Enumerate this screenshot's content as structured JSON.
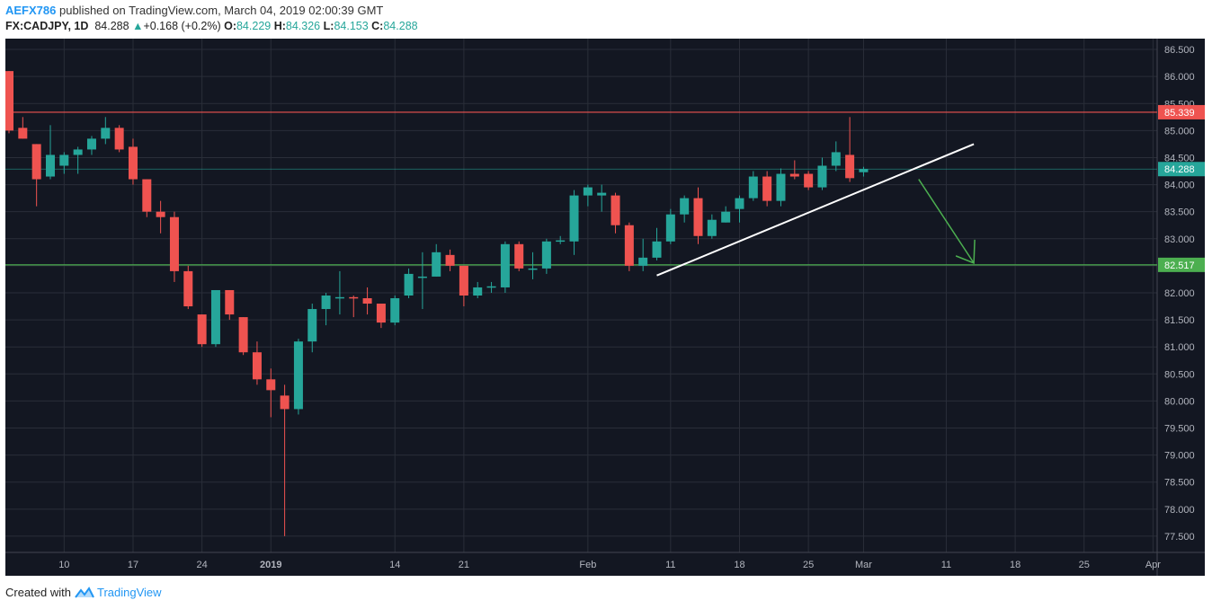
{
  "header": {
    "publisher": "AEFX786",
    "published_text": " published on TradingView.com, March 04, 2019 02:00:39 GMT",
    "symbol": "FX:CADJPY, 1D",
    "last": "84.288",
    "up_arrow": "▲",
    "change": "+0.168 (+0.2%)",
    "o_label": "O:",
    "o_val": "84.229",
    "h_label": "H:",
    "h_val": "84.326",
    "l_label": "L:",
    "l_val": "84.153",
    "c_label": "C:",
    "c_val": "84.288"
  },
  "footer": {
    "created_with": "Created with",
    "brand": "TradingView"
  },
  "colors": {
    "background": "#131722",
    "grid": "#2a2e39",
    "up": "#26a69a",
    "down": "#ef5350",
    "axis_text": "#b2b5be",
    "support_line": "#4caf50",
    "resistance_line": "#ef5350",
    "trendline": "#ffffff",
    "arrow": "#4caf50"
  },
  "chart_data": {
    "type": "candlestick",
    "symbol": "FX:CADJPY",
    "timeframe": "1D",
    "ylim": [
      77.2,
      86.7
    ],
    "y_ticks": [
      "86.500",
      "86.000",
      "85.500",
      "85.000",
      "84.500",
      "84.000",
      "83.500",
      "83.000",
      "82.500",
      "82.000",
      "81.500",
      "81.000",
      "80.500",
      "80.000",
      "79.500",
      "79.000",
      "78.500",
      "78.000",
      "77.500"
    ],
    "x_ticks": [
      {
        "label": "10",
        "i": 4
      },
      {
        "label": "17",
        "i": 9
      },
      {
        "label": "24",
        "i": 14
      },
      {
        "label": "2019",
        "i": 19,
        "bold": true
      },
      {
        "label": "14",
        "i": 28
      },
      {
        "label": "21",
        "i": 33
      },
      {
        "label": "Feb",
        "i": 42
      },
      {
        "label": "11",
        "i": 48
      },
      {
        "label": "18",
        "i": 53
      },
      {
        "label": "25",
        "i": 58
      },
      {
        "label": "Mar",
        "i": 62
      },
      {
        "label": "11",
        "i": 68
      },
      {
        "label": "18",
        "i": 73
      },
      {
        "label": "25",
        "i": 78
      },
      {
        "label": "Apr",
        "i": 83
      }
    ],
    "candles": [
      {
        "o": 86.1,
        "h": 86.1,
        "l": 84.95,
        "c": 85.0
      },
      {
        "o": 85.05,
        "h": 85.25,
        "l": 84.85,
        "c": 84.85
      },
      {
        "o": 84.75,
        "h": 84.75,
        "l": 83.6,
        "c": 84.1
      },
      {
        "o": 84.15,
        "h": 85.1,
        "l": 84.1,
        "c": 84.55
      },
      {
        "o": 84.35,
        "h": 84.6,
        "l": 84.2,
        "c": 84.55
      },
      {
        "o": 84.55,
        "h": 84.7,
        "l": 84.2,
        "c": 84.65
      },
      {
        "o": 84.65,
        "h": 84.9,
        "l": 84.55,
        "c": 84.85
      },
      {
        "o": 84.85,
        "h": 85.25,
        "l": 84.75,
        "c": 85.05
      },
      {
        "o": 85.05,
        "h": 85.1,
        "l": 84.6,
        "c": 84.65
      },
      {
        "o": 84.7,
        "h": 84.85,
        "l": 84.0,
        "c": 84.1
      },
      {
        "o": 84.1,
        "h": 84.1,
        "l": 83.4,
        "c": 83.5
      },
      {
        "o": 83.5,
        "h": 83.7,
        "l": 83.1,
        "c": 83.4
      },
      {
        "o": 83.4,
        "h": 83.5,
        "l": 82.2,
        "c": 82.4
      },
      {
        "o": 82.4,
        "h": 82.5,
        "l": 81.7,
        "c": 81.75
      },
      {
        "o": 81.6,
        "h": 81.6,
        "l": 81.0,
        "c": 81.05
      },
      {
        "o": 81.05,
        "h": 82.05,
        "l": 81.0,
        "c": 82.05
      },
      {
        "o": 82.05,
        "h": 82.05,
        "l": 81.5,
        "c": 81.6
      },
      {
        "o": 81.55,
        "h": 81.55,
        "l": 80.85,
        "c": 80.9
      },
      {
        "o": 80.9,
        "h": 81.1,
        "l": 80.3,
        "c": 80.4
      },
      {
        "o": 80.4,
        "h": 80.6,
        "l": 79.7,
        "c": 80.2
      },
      {
        "o": 80.1,
        "h": 80.3,
        "l": 77.5,
        "c": 79.85
      },
      {
        "o": 79.85,
        "h": 81.15,
        "l": 79.75,
        "c": 81.1
      },
      {
        "o": 81.1,
        "h": 81.8,
        "l": 80.9,
        "c": 81.7
      },
      {
        "o": 81.7,
        "h": 82.0,
        "l": 81.4,
        "c": 81.95
      },
      {
        "o": 81.9,
        "h": 82.4,
        "l": 81.6,
        "c": 81.92
      },
      {
        "o": 81.92,
        "h": 81.95,
        "l": 81.55,
        "c": 81.9
      },
      {
        "o": 81.9,
        "h": 82.1,
        "l": 81.6,
        "c": 81.8
      },
      {
        "o": 81.8,
        "h": 81.8,
        "l": 81.35,
        "c": 81.45
      },
      {
        "o": 81.45,
        "h": 81.95,
        "l": 81.4,
        "c": 81.9
      },
      {
        "o": 81.95,
        "h": 82.45,
        "l": 81.9,
        "c": 82.35
      },
      {
        "o": 82.3,
        "h": 82.75,
        "l": 81.7,
        "c": 82.3
      },
      {
        "o": 82.3,
        "h": 82.9,
        "l": 82.3,
        "c": 82.75
      },
      {
        "o": 82.7,
        "h": 82.8,
        "l": 82.4,
        "c": 82.5
      },
      {
        "o": 82.5,
        "h": 82.5,
        "l": 81.75,
        "c": 81.95
      },
      {
        "o": 81.95,
        "h": 82.2,
        "l": 81.9,
        "c": 82.1
      },
      {
        "o": 82.1,
        "h": 82.2,
        "l": 82.0,
        "c": 82.12
      },
      {
        "o": 82.1,
        "h": 82.95,
        "l": 82.0,
        "c": 82.9
      },
      {
        "o": 82.9,
        "h": 82.95,
        "l": 82.4,
        "c": 82.45
      },
      {
        "o": 82.45,
        "h": 82.75,
        "l": 82.25,
        "c": 82.45
      },
      {
        "o": 82.45,
        "h": 83.0,
        "l": 82.35,
        "c": 82.95
      },
      {
        "o": 82.95,
        "h": 83.05,
        "l": 82.9,
        "c": 82.97
      },
      {
        "o": 82.95,
        "h": 83.9,
        "l": 82.7,
        "c": 83.8
      },
      {
        "o": 83.8,
        "h": 84.0,
        "l": 83.6,
        "c": 83.95
      },
      {
        "o": 83.8,
        "h": 84.0,
        "l": 83.5,
        "c": 83.85
      },
      {
        "o": 83.8,
        "h": 83.85,
        "l": 83.1,
        "c": 83.25
      },
      {
        "o": 83.25,
        "h": 83.3,
        "l": 82.4,
        "c": 82.5
      },
      {
        "o": 82.5,
        "h": 83.0,
        "l": 82.4,
        "c": 82.65
      },
      {
        "o": 82.65,
        "h": 83.2,
        "l": 82.6,
        "c": 82.95
      },
      {
        "o": 82.95,
        "h": 83.55,
        "l": 82.9,
        "c": 83.45
      },
      {
        "o": 83.45,
        "h": 83.8,
        "l": 83.3,
        "c": 83.75
      },
      {
        "o": 83.75,
        "h": 83.95,
        "l": 82.9,
        "c": 83.05
      },
      {
        "o": 83.05,
        "h": 83.45,
        "l": 83.0,
        "c": 83.35
      },
      {
        "o": 83.3,
        "h": 83.6,
        "l": 83.3,
        "c": 83.5
      },
      {
        "o": 83.55,
        "h": 83.8,
        "l": 83.3,
        "c": 83.75
      },
      {
        "o": 83.75,
        "h": 84.25,
        "l": 83.7,
        "c": 84.15
      },
      {
        "o": 84.15,
        "h": 84.25,
        "l": 83.6,
        "c": 83.7
      },
      {
        "o": 83.7,
        "h": 84.3,
        "l": 83.6,
        "c": 84.2
      },
      {
        "o": 84.2,
        "h": 84.45,
        "l": 84.1,
        "c": 84.15
      },
      {
        "o": 84.2,
        "h": 84.25,
        "l": 83.9,
        "c": 83.95
      },
      {
        "o": 83.95,
        "h": 84.5,
        "l": 83.9,
        "c": 84.35
      },
      {
        "o": 84.35,
        "h": 84.8,
        "l": 84.25,
        "c": 84.6
      },
      {
        "o": 84.55,
        "h": 85.25,
        "l": 84.05,
        "c": 84.12
      },
      {
        "o": 84.23,
        "h": 84.33,
        "l": 84.15,
        "c": 84.29
      }
    ],
    "horizontal_lines": [
      {
        "value": 85.339,
        "label": "85.339",
        "color": "#ef5350"
      },
      {
        "value": 82.517,
        "label": "82.517",
        "color": "#4caf50"
      }
    ],
    "last_price": {
      "value": 84.288,
      "label": "84.288"
    },
    "trendline": {
      "from": {
        "i": 47,
        "y": 82.32
      },
      "to": {
        "i": 70,
        "y": 84.75
      }
    },
    "arrow": {
      "from": {
        "i": 66,
        "y": 84.1
      },
      "to": {
        "i": 70,
        "y": 82.55
      }
    }
  }
}
